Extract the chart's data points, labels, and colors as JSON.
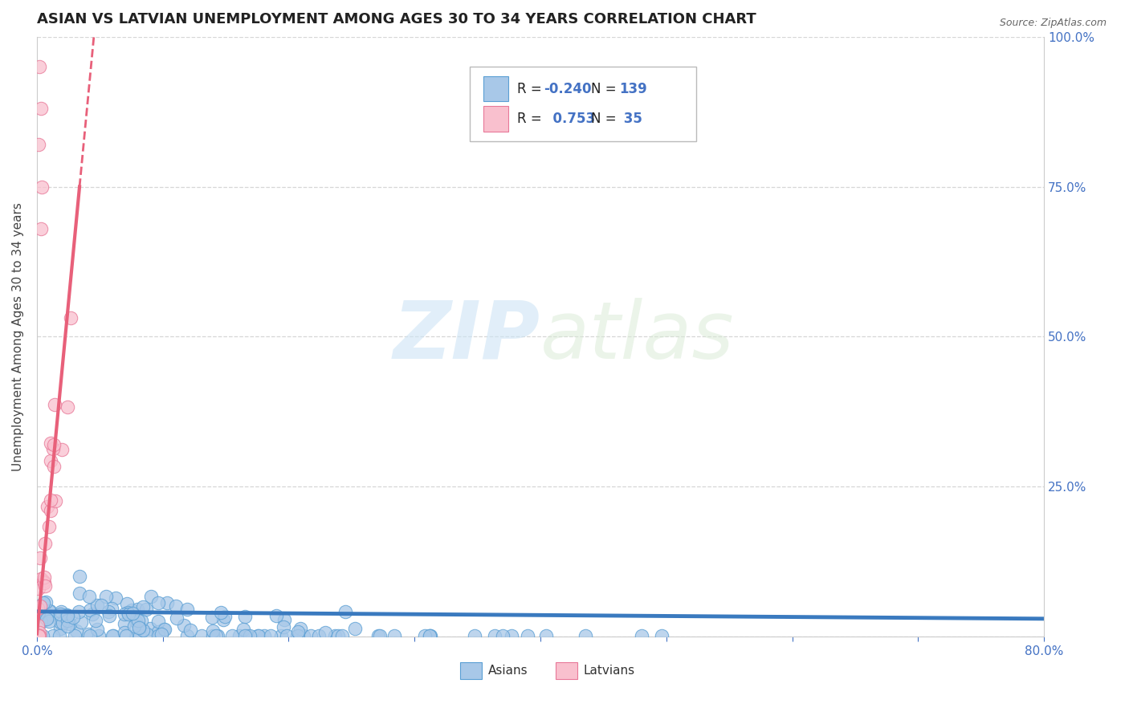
{
  "title": "ASIAN VS LATVIAN UNEMPLOYMENT AMONG AGES 30 TO 34 YEARS CORRELATION CHART",
  "source_text": "Source: ZipAtlas.com",
  "ylabel": "Unemployment Among Ages 30 to 34 years",
  "xlim": [
    0.0,
    0.8
  ],
  "ylim": [
    0.0,
    1.0
  ],
  "xticks": [
    0.0,
    0.1,
    0.2,
    0.3,
    0.4,
    0.5,
    0.6,
    0.7,
    0.8
  ],
  "xticklabels": [
    "0.0%",
    "",
    "",
    "",
    "",
    "",
    "",
    "",
    "80.0%"
  ],
  "yticks": [
    0.0,
    0.25,
    0.5,
    0.75,
    1.0
  ],
  "yticklabels_right": [
    "",
    "25.0%",
    "50.0%",
    "75.0%",
    "100.0%"
  ],
  "asian_color": "#a8c8e8",
  "asian_edge_color": "#5a9fd4",
  "latvian_color": "#f9c0ce",
  "latvian_edge_color": "#e87898",
  "asian_line_color": "#3a7abf",
  "latvian_line_color": "#e8607a",
  "legend_r_asian": "-0.240",
  "legend_n_asian": "139",
  "legend_r_latvian": "0.753",
  "legend_n_latvian": "35",
  "watermark_zip": "ZIP",
  "watermark_atlas": "atlas",
  "background_color": "#ffffff",
  "grid_color": "#cccccc",
  "title_fontsize": 13,
  "axis_label_fontsize": 11,
  "tick_fontsize": 11,
  "asian_R": -0.24,
  "asian_N": 139,
  "latvian_R": 0.753,
  "latvian_N": 35
}
